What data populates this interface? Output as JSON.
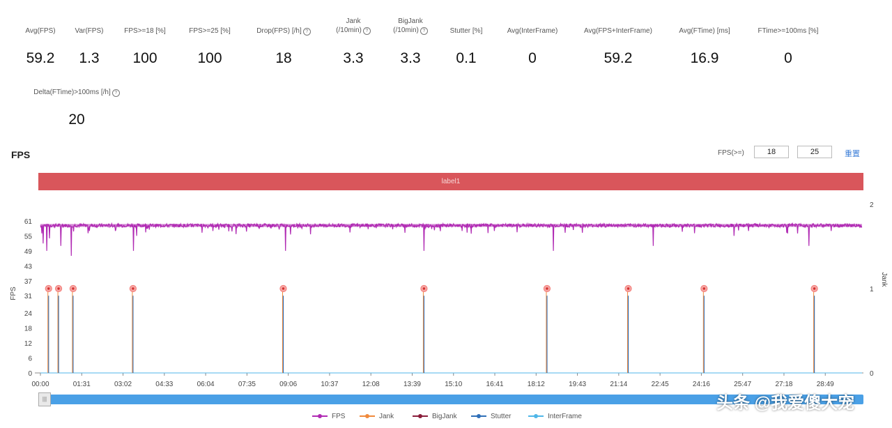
{
  "stats": [
    {
      "label": "Avg(FPS)",
      "value": "59.2",
      "help": false
    },
    {
      "label": "Var(FPS)",
      "value": "1.3",
      "help": false
    },
    {
      "label": "FPS>=18 [%]",
      "value": "100",
      "help": false
    },
    {
      "label": "FPS>=25 [%]",
      "value": "100",
      "help": false
    },
    {
      "label": "Drop(FPS) [/h]",
      "value": "18",
      "help": true
    },
    {
      "label": "Jank\n(/10min)",
      "value": "3.3",
      "help": true
    },
    {
      "label": "BigJank\n(/10min)",
      "value": "3.3",
      "help": true
    },
    {
      "label": "Stutter [%]",
      "value": "0.1",
      "help": false
    },
    {
      "label": "Avg(InterFrame)",
      "value": "0",
      "help": false
    },
    {
      "label": "Avg(FPS+InterFrame)",
      "value": "59.2",
      "help": false
    },
    {
      "label": "Avg(FTime) [ms]",
      "value": "16.9",
      "help": false
    },
    {
      "label": "FTime>=100ms [%]",
      "value": "0",
      "help": false
    },
    {
      "label": "Delta(FTime)>100ms [/h]",
      "value": "20",
      "help": true
    }
  ],
  "section_title": "FPS",
  "thresholds": {
    "label": "FPS(>=)",
    "values": [
      "18",
      "25"
    ],
    "reset_label": "重置"
  },
  "label_bar": "label1",
  "help_glyph": "?",
  "slider_glyph": "|||",
  "watermark": "头条 @我爱傻大宠",
  "colors": {
    "fps": "#b02ab3",
    "jank": "#f08a3c",
    "bigjank": "#8a1d3a",
    "stutter": "#2f6fb8",
    "interframe": "#4fb6e8",
    "label_bar": "#d9565b",
    "slider": "#4aa0e6"
  },
  "chart_data": {
    "type": "line",
    "x_tick_labels": [
      "00:00",
      "01:31",
      "03:02",
      "04:33",
      "06:04",
      "07:35",
      "09:06",
      "10:37",
      "12:08",
      "13:39",
      "15:10",
      "16:41",
      "18:12",
      "19:43",
      "21:14",
      "22:45",
      "24:16",
      "25:47",
      "27:18",
      "28:49"
    ],
    "x_tick_seconds": [
      0,
      91,
      182,
      273,
      364,
      455,
      546,
      637,
      728,
      819,
      910,
      1001,
      1092,
      1183,
      1274,
      1365,
      1456,
      1547,
      1638,
      1729
    ],
    "x_range_seconds": [
      0,
      1810
    ],
    "ylabel_left": "FPS",
    "ylim_left": [
      0,
      61
    ],
    "yticks_left": [
      0,
      6,
      12,
      18,
      24,
      31,
      37,
      43,
      49,
      55,
      61
    ],
    "ylabel_right": "Jank",
    "ylim_right": [
      0,
      2
    ],
    "yticks_right": [
      0,
      1,
      2
    ],
    "series": [
      {
        "name": "FPS",
        "axis": "left",
        "baseline": 59.2,
        "dips": [
          [
            3,
            56
          ],
          [
            6,
            52
          ],
          [
            14,
            49
          ],
          [
            20,
            54
          ],
          [
            45,
            51
          ],
          [
            68,
            47
          ],
          [
            108,
            57
          ],
          [
            205,
            49
          ],
          [
            212,
            55
          ],
          [
            380,
            57
          ],
          [
            540,
            49
          ],
          [
            845,
            49
          ],
          [
            1000,
            57
          ],
          [
            1130,
            49
          ],
          [
            1350,
            51
          ],
          [
            1528,
            55
          ],
          [
            1560,
            57
          ],
          [
            1693,
            51
          ],
          [
            1742,
            57
          ]
        ]
      },
      {
        "name": "Jank",
        "axis": "right",
        "events_seconds": [
          18,
          40,
          72,
          204,
          535,
          845,
          1116,
          1295,
          1462,
          1705
        ],
        "event_value": 1
      },
      {
        "name": "BigJank",
        "axis": "right",
        "events_seconds": [
          18,
          40,
          72,
          204,
          535,
          845,
          1116,
          1295,
          1462,
          1705
        ],
        "event_value": 1
      },
      {
        "name": "Stutter",
        "axis": "left",
        "events_seconds": [
          18,
          40,
          72,
          204,
          535,
          845,
          1116,
          1295,
          1462,
          1705
        ],
        "event_value": 31
      },
      {
        "name": "InterFrame",
        "axis": "left",
        "constant": 0
      }
    ],
    "legend": [
      "FPS",
      "Jank",
      "BigJank",
      "Stutter",
      "InterFrame"
    ],
    "legend_position": "bottom",
    "grid": false
  }
}
